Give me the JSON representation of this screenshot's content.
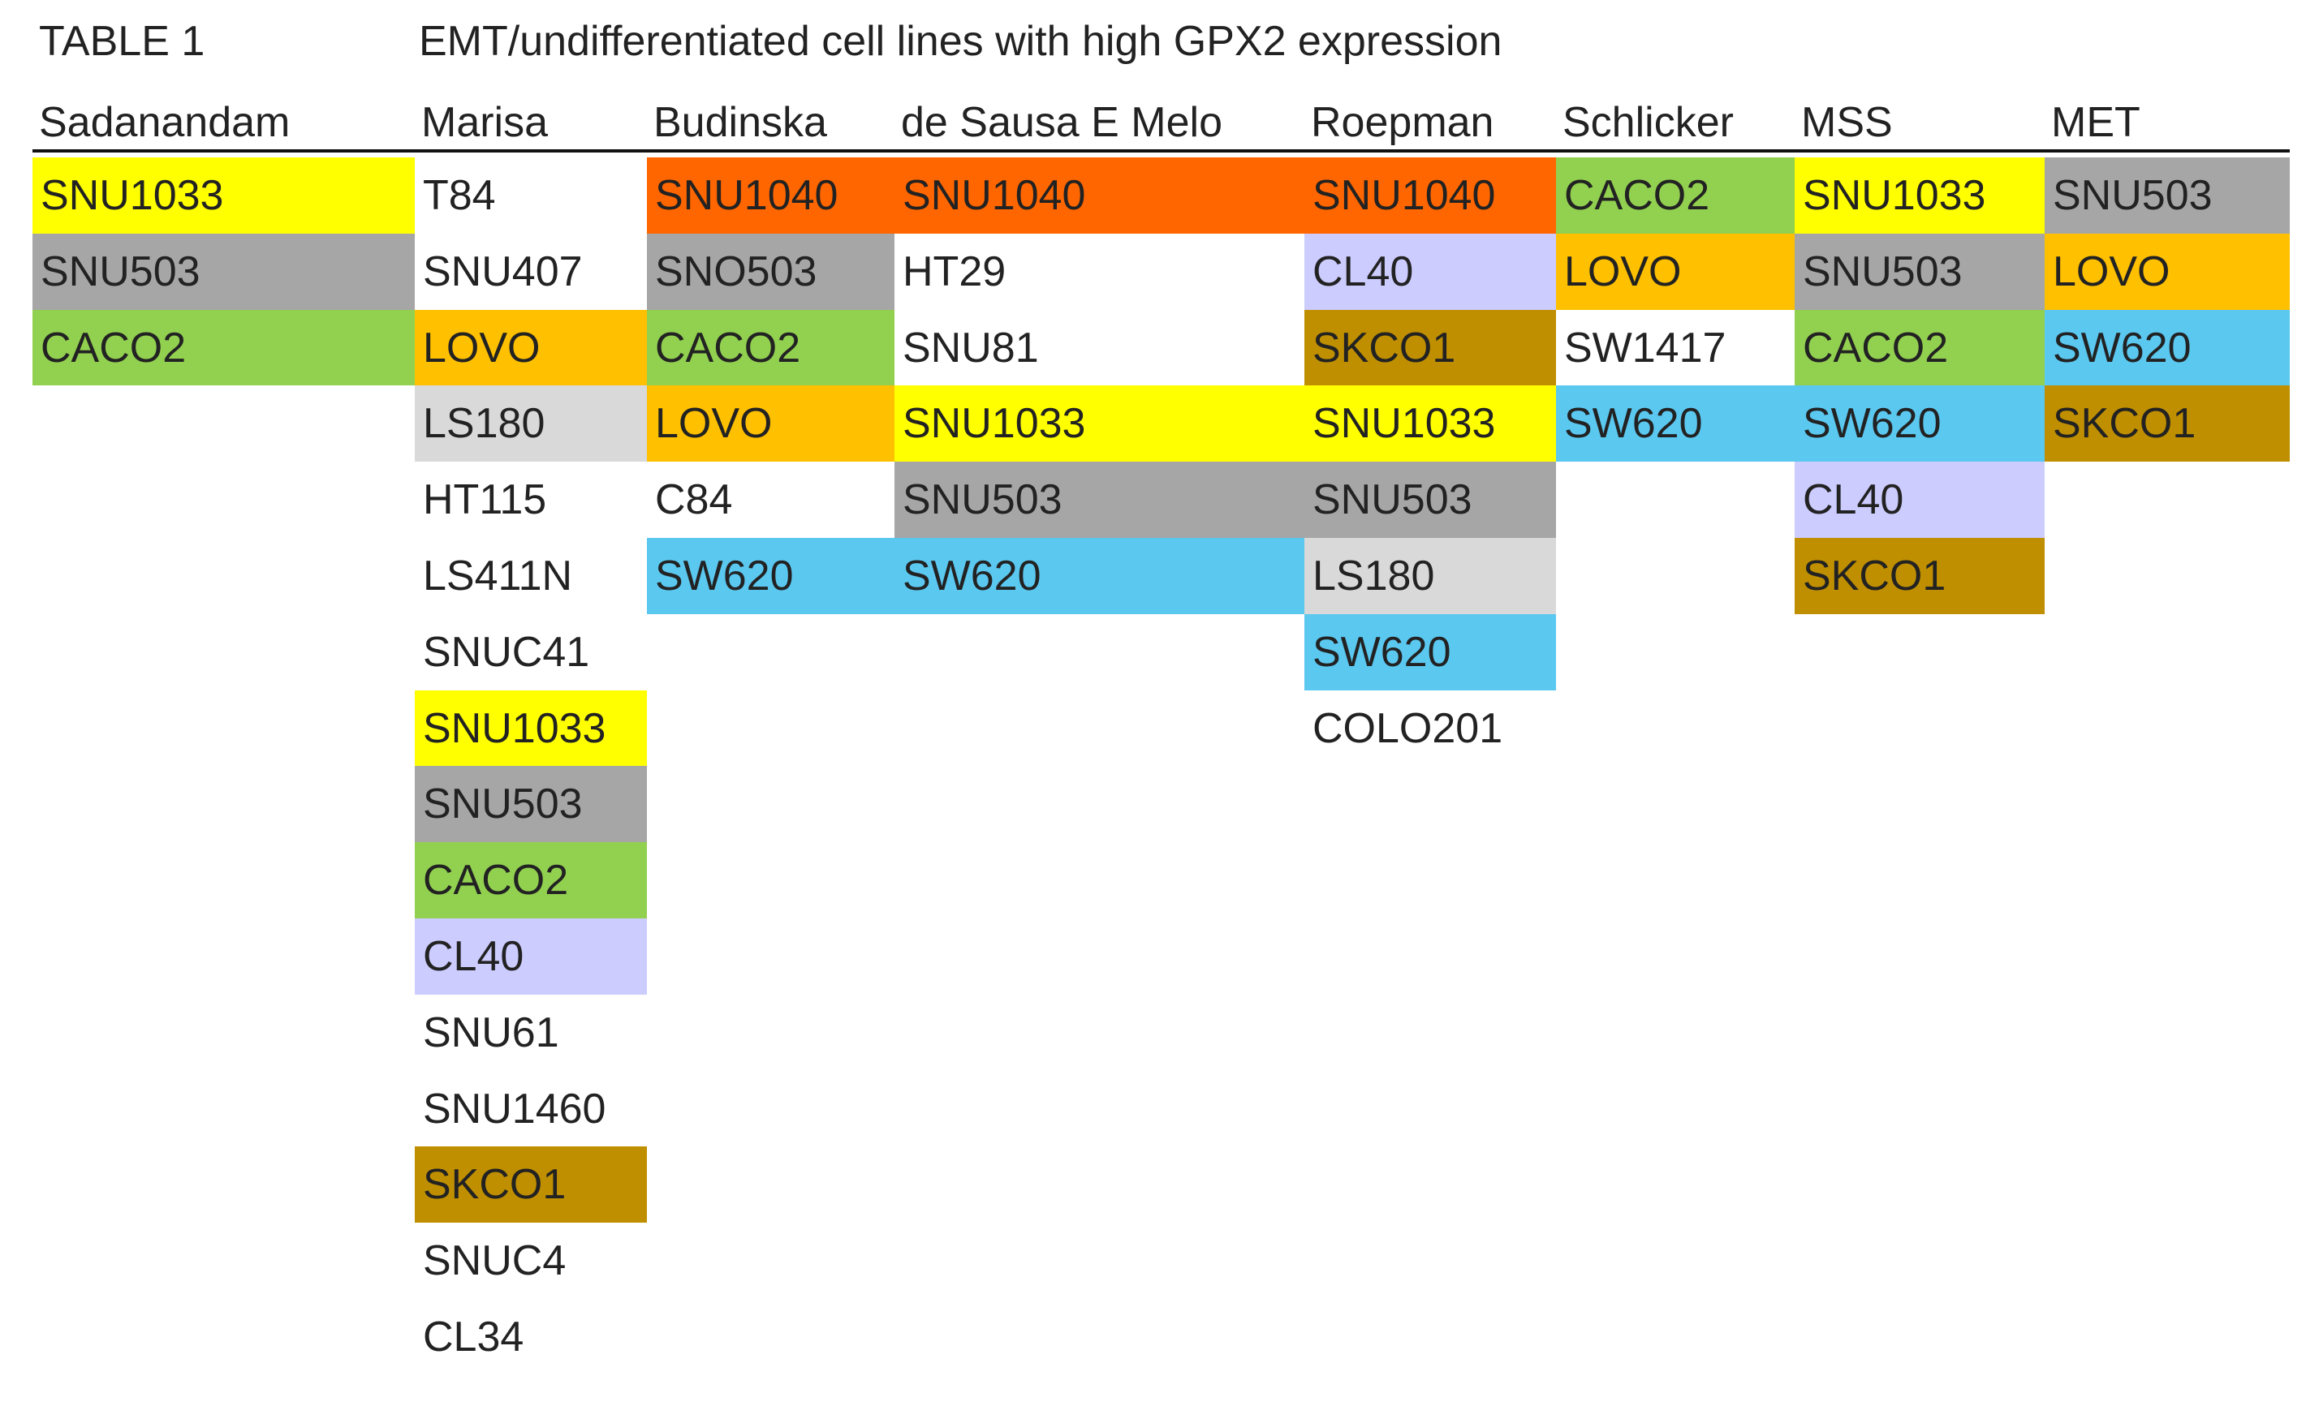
{
  "title": "TABLE 1",
  "caption": "EMT/undifferentiated cell lines with high GPX2 expression",
  "columns": [
    {
      "header": "Sadanandam",
      "cells": [
        {
          "text": "SNU1033",
          "color": "#ffff00"
        },
        {
          "text": "SNU503",
          "color": "#a6a6a6"
        },
        {
          "text": "CACO2",
          "color": "#92d050"
        }
      ]
    },
    {
      "header": "Marisa",
      "cells": [
        {
          "text": "T84"
        },
        {
          "text": "SNU407"
        },
        {
          "text": "LOVO",
          "color": "#ffc000"
        },
        {
          "text": "LS180",
          "color": "#d9d9d9"
        },
        {
          "text": "HT115"
        },
        {
          "text": "LS411N"
        },
        {
          "text": "SNUC41"
        },
        {
          "text": "SNU1033",
          "color": "#ffff00"
        },
        {
          "text": "SNU503",
          "color": "#a6a6a6"
        },
        {
          "text": "CACO2",
          "color": "#92d050"
        },
        {
          "text": "CL40",
          "color": "#ccccff"
        },
        {
          "text": "SNU61"
        },
        {
          "text": "SNU1460"
        },
        {
          "text": "SKCO1",
          "color": "#bf8f00"
        },
        {
          "text": "SNUC4"
        },
        {
          "text": "CL34"
        }
      ]
    },
    {
      "header": "Budinska",
      "cells": [
        {
          "text": "SNU1040",
          "color": "#ff6600"
        },
        {
          "text": "SNO503",
          "color": "#a6a6a6"
        },
        {
          "text": "CACO2",
          "color": "#92d050"
        },
        {
          "text": "LOVO",
          "color": "#ffc000"
        },
        {
          "text": "C84"
        },
        {
          "text": "SW620",
          "color": "#5bc8f0"
        }
      ]
    },
    {
      "header": "de Sausa E Melo",
      "cells": [
        {
          "text": "SNU1040",
          "color": "#ff6600"
        },
        {
          "text": "HT29"
        },
        {
          "text": "SNU81"
        },
        {
          "text": "SNU1033",
          "color": "#ffff00"
        },
        {
          "text": "SNU503",
          "color": "#a6a6a6"
        },
        {
          "text": "SW620",
          "color": "#5bc8f0"
        }
      ]
    },
    {
      "header": "Roepman",
      "cells": [
        {
          "text": "SNU1040",
          "color": "#ff6600"
        },
        {
          "text": "CL40",
          "color": "#ccccff"
        },
        {
          "text": "SKCO1",
          "color": "#bf8f00"
        },
        {
          "text": "SNU1033",
          "color": "#ffff00"
        },
        {
          "text": "SNU503",
          "color": "#a6a6a6"
        },
        {
          "text": "LS180",
          "color": "#d9d9d9"
        },
        {
          "text": "SW620",
          "color": "#5bc8f0"
        },
        {
          "text": "COLO201"
        }
      ]
    },
    {
      "header": "Schlicker",
      "cells": [
        {
          "text": "CACO2",
          "color": "#92d050"
        },
        {
          "text": "LOVO",
          "color": "#ffc000"
        },
        {
          "text": "SW1417"
        },
        {
          "text": "SW620",
          "color": "#5bc8f0"
        }
      ]
    },
    {
      "header": "MSS",
      "cells": [
        {
          "text": "SNU1033",
          "color": "#ffff00"
        },
        {
          "text": "SNU503",
          "color": "#a6a6a6"
        },
        {
          "text": "CACO2",
          "color": "#92d050"
        },
        {
          "text": "SW620",
          "color": "#5bc8f0"
        },
        {
          "text": "CL40",
          "color": "#ccccff"
        },
        {
          "text": "SKCO1",
          "color": "#bf8f00"
        }
      ]
    },
    {
      "header": "MET",
      "cells": [
        {
          "text": "SNU503",
          "color": "#a6a6a6"
        },
        {
          "text": "LOVO",
          "color": "#ffc000"
        },
        {
          "text": "SW620",
          "color": "#5bc8f0"
        },
        {
          "text": "SKCO1",
          "color": "#bf8f00"
        }
      ]
    }
  ]
}
